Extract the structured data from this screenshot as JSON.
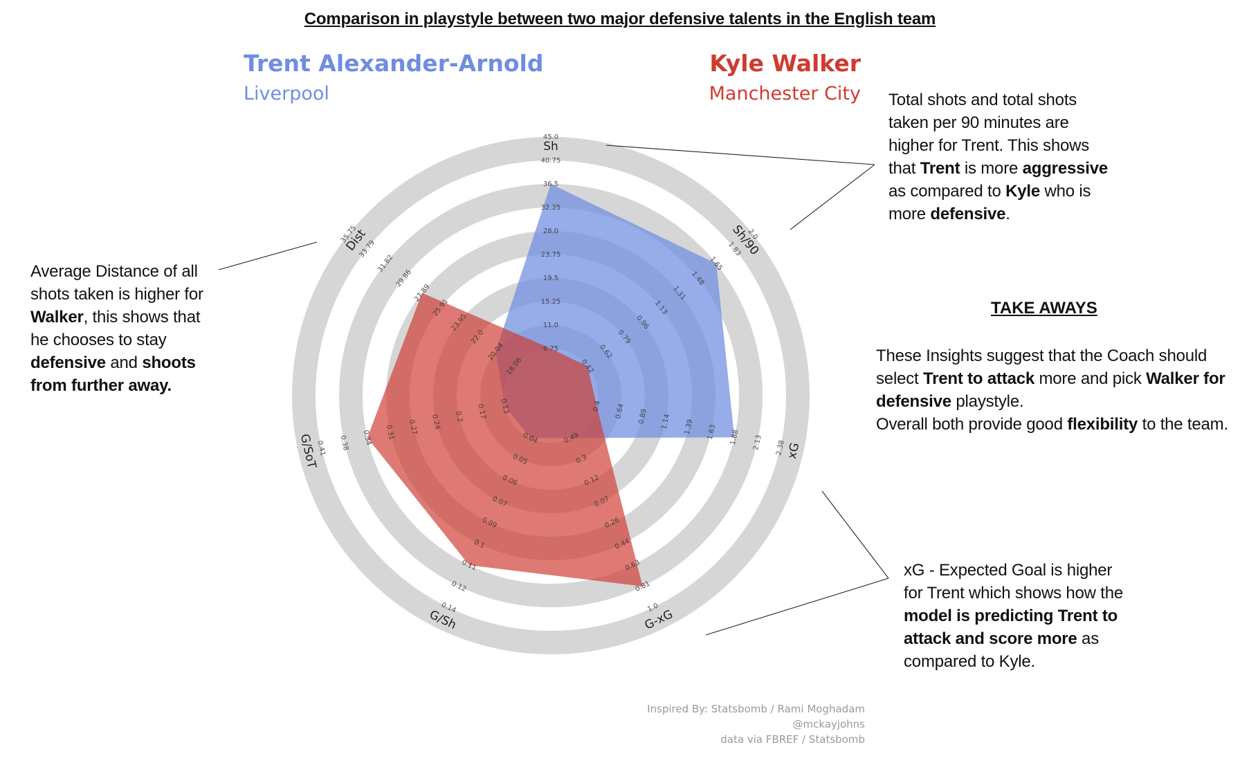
{
  "title": "Comparison in playstyle between two major defensive talents in the English team",
  "players": [
    {
      "name": "Trent Alexander-Arnold",
      "club": "Liverpool",
      "color": "#6f8ee0"
    },
    {
      "name": "Kyle Walker",
      "club": "Manchester City",
      "color": "#cf3b30"
    }
  ],
  "annotations": {
    "shots": [
      "Total shots and total shots taken per 90 minutes are higher for Trent. This shows that ",
      "Trent",
      " is more ",
      "aggressive",
      " as compared to ",
      "Kyle",
      " who is more ",
      "defensive",
      "."
    ],
    "dist": [
      "Average Distance of all shots taken is higher for ",
      "Walker",
      ", this shows that he chooses to stay ",
      "defensive",
      " and ",
      "shoots from further away."
    ],
    "xg": [
      "xG - Expected Goal is higher for Trent which shows how the ",
      "model is predicting Trent to attack and score more",
      "  as compared to Kyle."
    ],
    "takeaway_title": "TAKE AWAYS",
    "takeaway": [
      "These Insights suggest that the Coach should select ",
      "Trent to attack",
      " more and pick ",
      "Walker for defensive",
      " playstyle.",
      "Overall both provide good ",
      "flexibility",
      " to the team."
    ]
  },
  "credits": [
    "Inspired By: Statsbomb / Rami Moghadam",
    "@mckayjohns",
    "data via FBREF / Statsbomb"
  ],
  "chart_data": {
    "type": "radar",
    "categories": [
      "Sh",
      "Sh/90",
      "xG",
      "G-xG",
      "G/Sh",
      "G/SoT",
      "Dist"
    ],
    "tick_labels": {
      "Sh": [
        "6.75",
        "11.0",
        "15.25",
        "19.5",
        "23.75",
        "28.0",
        "32.25",
        "36.5",
        "40.75",
        "45.0"
      ],
      "Sh/90": [
        "0.42",
        "0.62",
        "0.79",
        "0.96",
        "1.13",
        "1.31",
        "1.48",
        "1.65",
        "1.83",
        "2.0"
      ],
      "xG": [
        "0.4",
        "0.64",
        "0.89",
        "1.14",
        "1.39",
        "1.63",
        "1.88",
        "2.13",
        "2.38"
      ],
      "G-xG": [
        "0.49",
        "0.3",
        "0.12",
        "0.07",
        "0.26",
        "0.44",
        "0.63",
        "0.81",
        "1.0"
      ],
      "G/Sh": [
        "0.04",
        "0.05",
        "0.06",
        "0.07",
        "0.09",
        "0.1",
        "0.11",
        "0.12",
        "0.14"
      ],
      "G/SoT": [
        "0.13",
        "0.17",
        "0.2",
        "0.24",
        "0.27",
        "0.31",
        "0.34",
        "0.38",
        "0.41"
      ],
      "Dist": [
        "18.06",
        "20.04",
        "22.0",
        "23.95",
        "25.91",
        "27.89",
        "29.86",
        "31.82",
        "33.79",
        "35.75"
      ]
    },
    "series": [
      {
        "name": "Trent Alexander-Arnold",
        "values": [
          36.5,
          1.65,
          1.88,
          0.49,
          0.04,
          0.13,
          20.04
        ],
        "color": "#6f8ee0"
      },
      {
        "name": "Kyle Walker",
        "values": [
          6.75,
          0.42,
          0.4,
          0.81,
          0.11,
          0.34,
          27.89
        ],
        "color": "#cf3b30"
      }
    ]
  }
}
